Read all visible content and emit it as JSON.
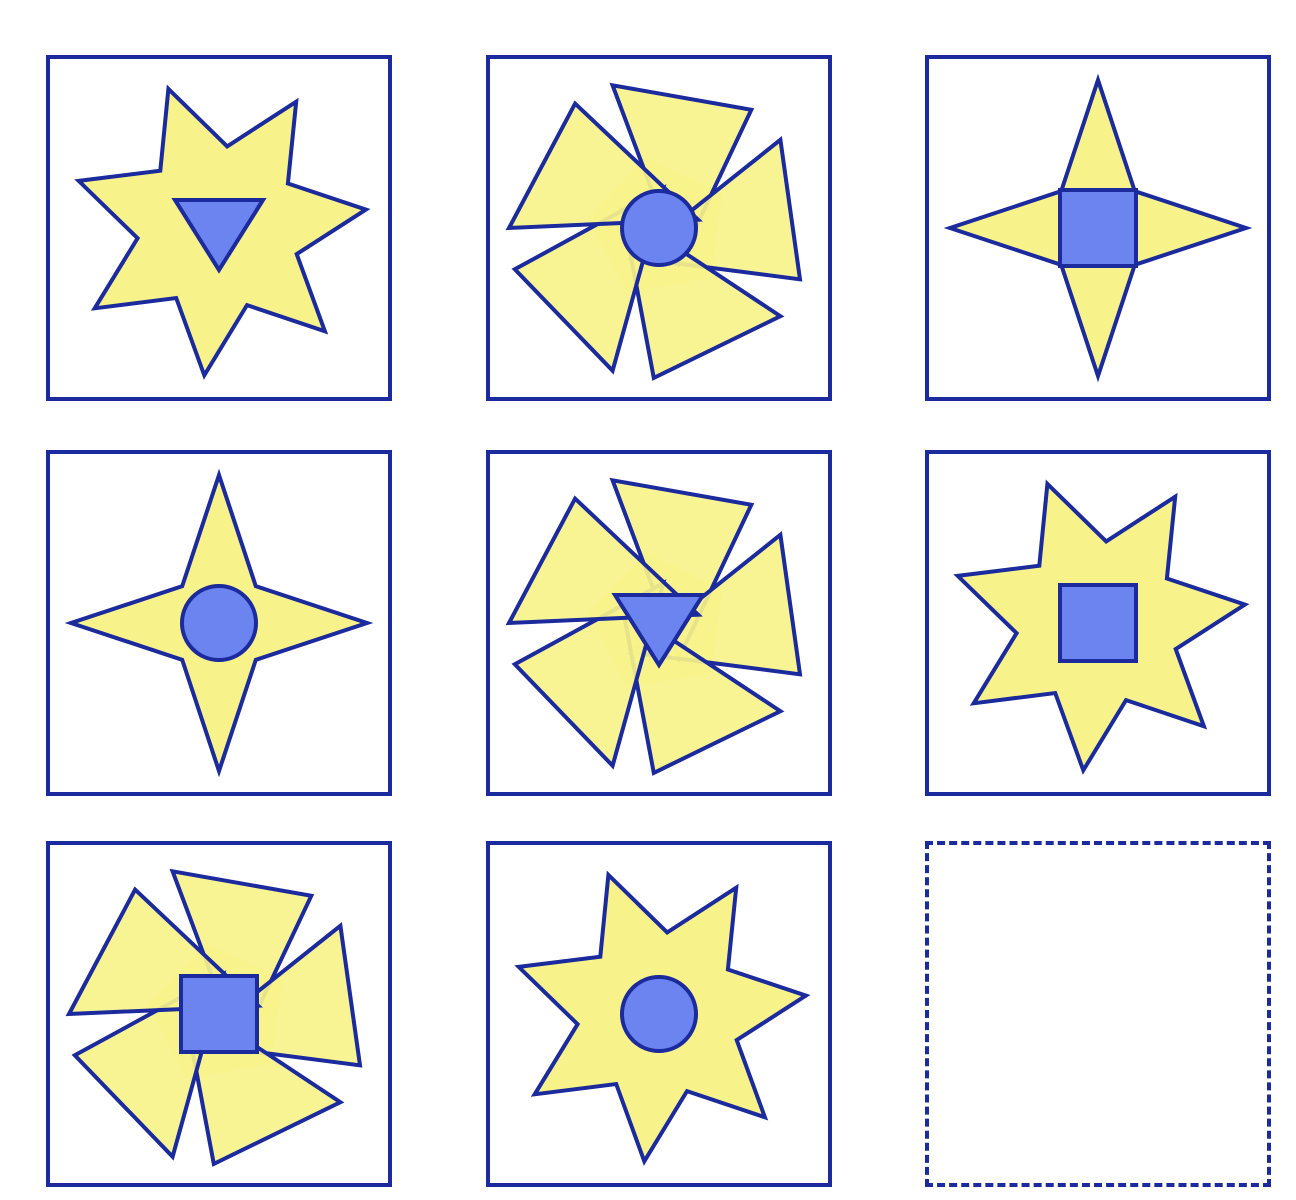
{
  "colors": {
    "outline": "#1b2a9c",
    "outer_fill": "#f7f38a",
    "inner_fill": "#6b84f0"
  },
  "grid": {
    "rows": 3,
    "cols": 3,
    "cells": [
      {
        "outer": "seven-point-star",
        "inner": "triangle"
      },
      {
        "outer": "pinwheel",
        "inner": "circle"
      },
      {
        "outer": "four-point-star",
        "inner": "square"
      },
      {
        "outer": "four-point-star",
        "inner": "circle"
      },
      {
        "outer": "pinwheel",
        "inner": "triangle"
      },
      {
        "outer": "seven-point-star",
        "inner": "square"
      },
      {
        "outer": "pinwheel",
        "inner": "square"
      },
      {
        "outer": "seven-point-star",
        "inner": "circle"
      },
      {
        "outer": "missing",
        "inner": "missing"
      }
    ]
  }
}
